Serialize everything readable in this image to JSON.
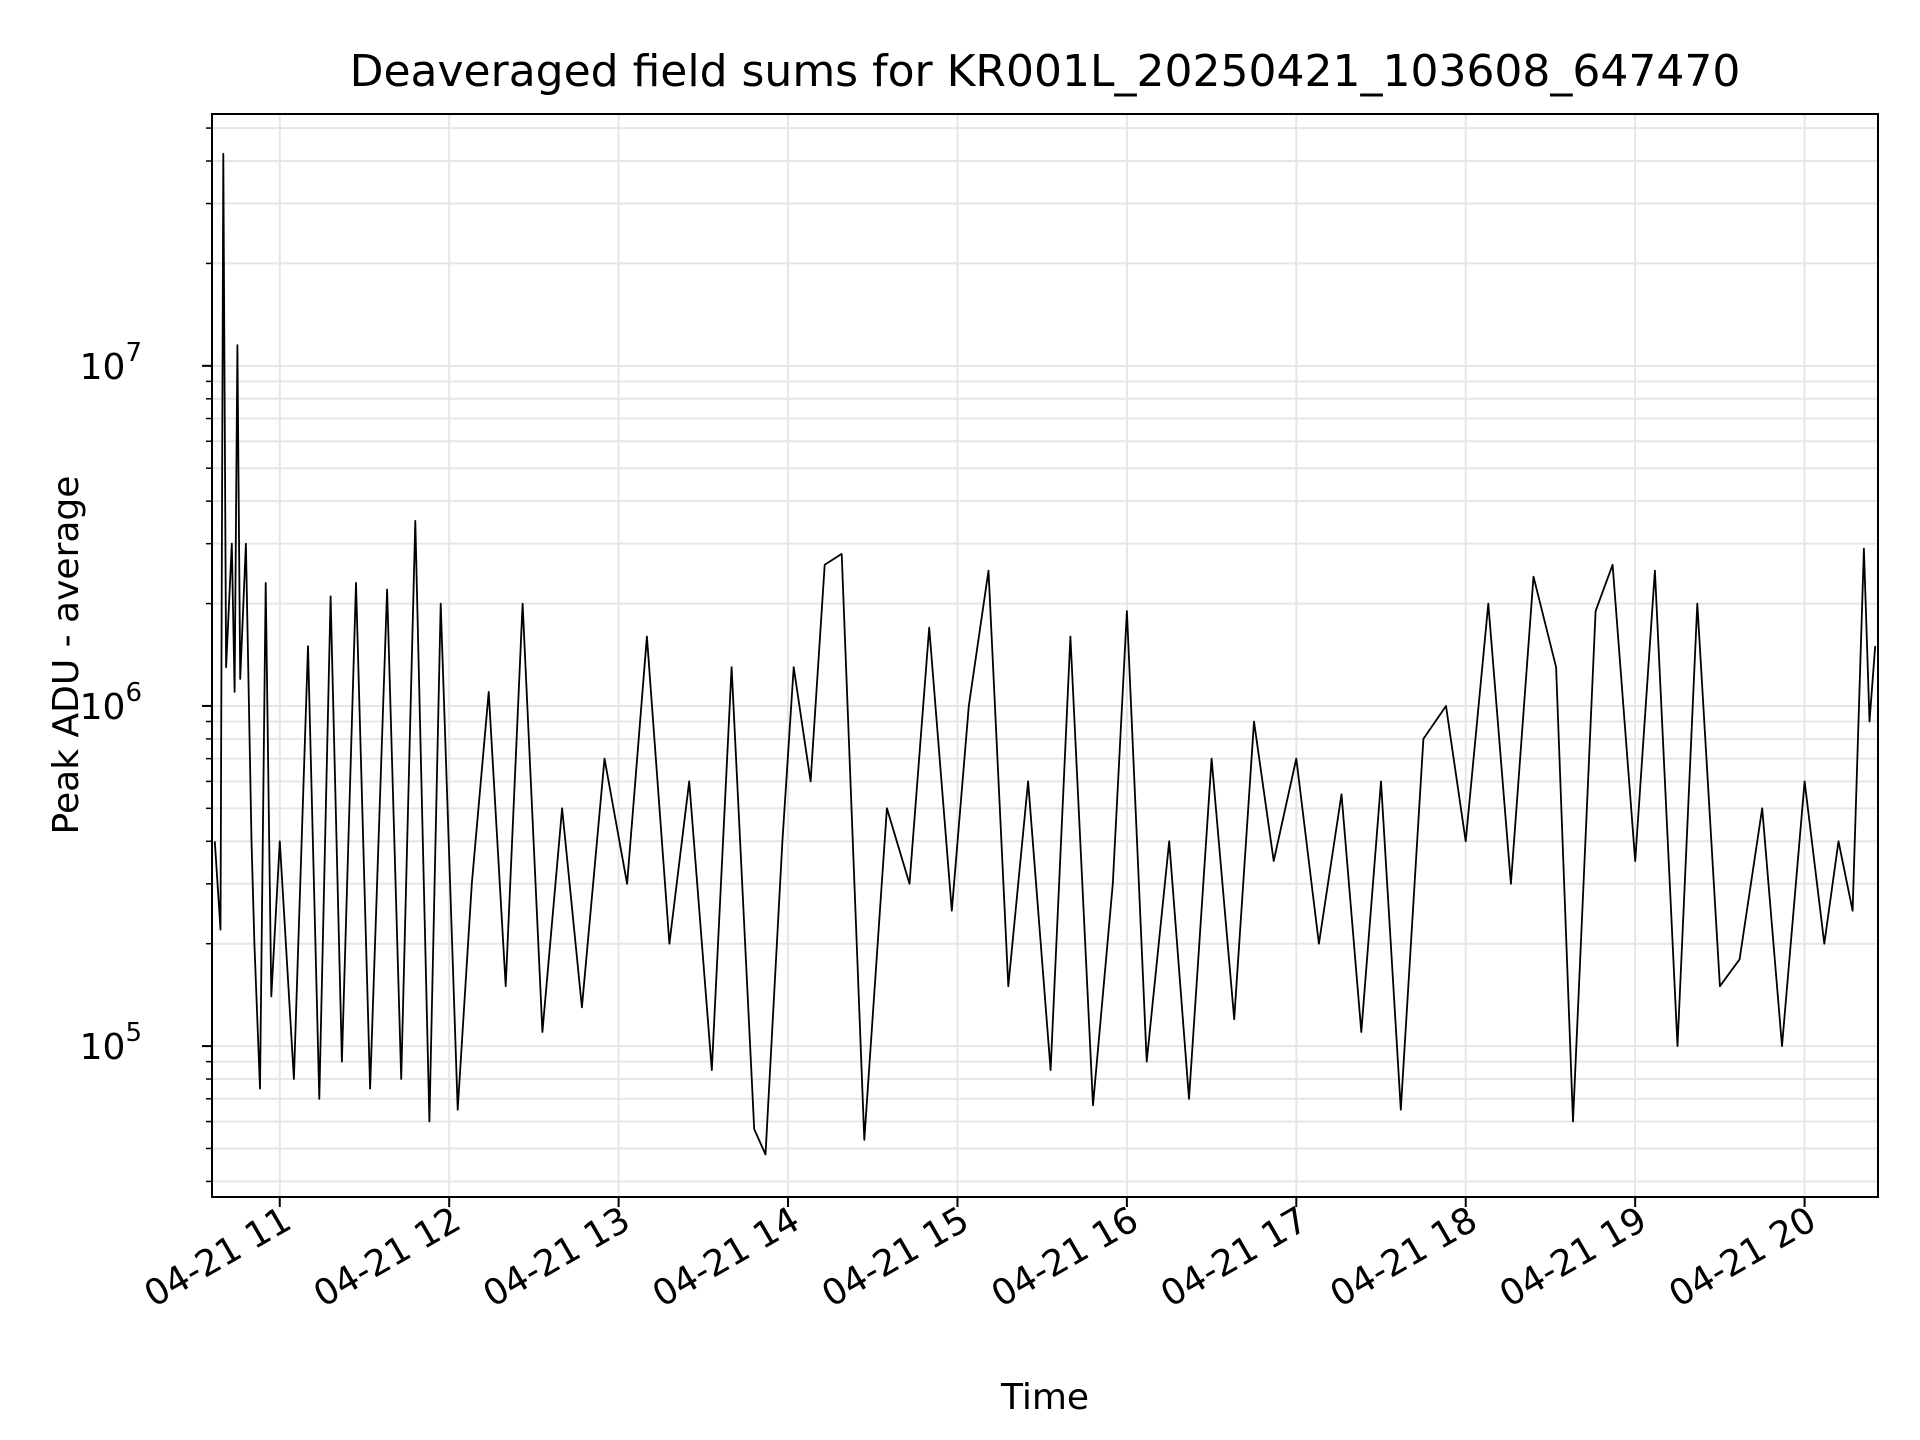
{
  "chart_data": {
    "type": "line",
    "title": "Deaveraged field sums for KR001L_20250421_103608_647470",
    "xlabel": "Time",
    "ylabel": "Peak ADU - average",
    "yscale": "log",
    "ylim": [
      36000,
      55000000
    ],
    "xlim": [
      "2025-04-21 10:36",
      "2025-04-21 20:26"
    ],
    "grid": true,
    "line_color": "#000000",
    "grid_color": "#e6e6e6",
    "x_ticks": [
      {
        "label": "04-21 11",
        "time": "2025-04-21 11:00"
      },
      {
        "label": "04-21 12",
        "time": "2025-04-21 12:00"
      },
      {
        "label": "04-21 13",
        "time": "2025-04-21 13:00"
      },
      {
        "label": "04-21 14",
        "time": "2025-04-21 14:00"
      },
      {
        "label": "04-21 15",
        "time": "2025-04-21 15:00"
      },
      {
        "label": "04-21 16",
        "time": "2025-04-21 16:00"
      },
      {
        "label": "04-21 17",
        "time": "2025-04-21 17:00"
      },
      {
        "label": "04-21 18",
        "time": "2025-04-21 18:00"
      },
      {
        "label": "04-21 19",
        "time": "2025-04-21 19:00"
      },
      {
        "label": "04-21 20",
        "time": "2025-04-21 20:00"
      }
    ],
    "y_ticks": [
      {
        "base": "10",
        "exp": "5",
        "value": 100000
      },
      {
        "base": "10",
        "exp": "6",
        "value": 1000000
      },
      {
        "base": "10",
        "exp": "7",
        "value": 10000000
      }
    ],
    "series": [
      {
        "points": [
          [
            "2025-04-21 10:37",
            400000
          ],
          [
            "2025-04-21 10:39",
            220000
          ],
          [
            "2025-04-21 10:40",
            42000000
          ],
          [
            "2025-04-21 10:41",
            1300000
          ],
          [
            "2025-04-21 10:43",
            3000000
          ],
          [
            "2025-04-21 10:44",
            1100000
          ],
          [
            "2025-04-21 10:45",
            11500000
          ],
          [
            "2025-04-21 10:46",
            1200000
          ],
          [
            "2025-04-21 10:48",
            3000000
          ],
          [
            "2025-04-21 10:50",
            400000
          ],
          [
            "2025-04-21 10:51",
            200000
          ],
          [
            "2025-04-21 10:53",
            75000
          ],
          [
            "2025-04-21 10:55",
            2300000
          ],
          [
            "2025-04-21 10:57",
            140000
          ],
          [
            "2025-04-21 11:00",
            400000
          ],
          [
            "2025-04-21 11:05",
            80000
          ],
          [
            "2025-04-21 11:10",
            1500000
          ],
          [
            "2025-04-21 11:14",
            70000
          ],
          [
            "2025-04-21 11:18",
            2100000
          ],
          [
            "2025-04-21 11:22",
            90000
          ],
          [
            "2025-04-21 11:27",
            2300000
          ],
          [
            "2025-04-21 11:32",
            75000
          ],
          [
            "2025-04-21 11:38",
            2200000
          ],
          [
            "2025-04-21 11:43",
            80000
          ],
          [
            "2025-04-21 11:48",
            3500000
          ],
          [
            "2025-04-21 11:53",
            60000
          ],
          [
            "2025-04-21 11:57",
            2000000
          ],
          [
            "2025-04-21 12:03",
            65000
          ],
          [
            "2025-04-21 12:08",
            300000
          ],
          [
            "2025-04-21 12:14",
            1100000
          ],
          [
            "2025-04-21 12:20",
            150000
          ],
          [
            "2025-04-21 12:26",
            2000000
          ],
          [
            "2025-04-21 12:33",
            110000
          ],
          [
            "2025-04-21 12:40",
            500000
          ],
          [
            "2025-04-21 12:47",
            130000
          ],
          [
            "2025-04-21 12:55",
            700000
          ],
          [
            "2025-04-21 13:03",
            300000
          ],
          [
            "2025-04-21 13:10",
            1600000
          ],
          [
            "2025-04-21 13:18",
            200000
          ],
          [
            "2025-04-21 13:25",
            600000
          ],
          [
            "2025-04-21 13:33",
            85000
          ],
          [
            "2025-04-21 13:40",
            1300000
          ],
          [
            "2025-04-21 13:48",
            57000
          ],
          [
            "2025-04-21 13:52",
            48000
          ],
          [
            "2025-04-21 13:58",
            400000
          ],
          [
            "2025-04-21 14:02",
            1300000
          ],
          [
            "2025-04-21 14:08",
            600000
          ],
          [
            "2025-04-21 14:13",
            2600000
          ],
          [
            "2025-04-21 14:19",
            2800000
          ],
          [
            "2025-04-21 14:27",
            53000
          ],
          [
            "2025-04-21 14:35",
            500000
          ],
          [
            "2025-04-21 14:43",
            300000
          ],
          [
            "2025-04-21 14:50",
            1700000
          ],
          [
            "2025-04-21 14:58",
            250000
          ],
          [
            "2025-04-21 15:04",
            1000000
          ],
          [
            "2025-04-21 15:11",
            2500000
          ],
          [
            "2025-04-21 15:18",
            150000
          ],
          [
            "2025-04-21 15:25",
            600000
          ],
          [
            "2025-04-21 15:33",
            85000
          ],
          [
            "2025-04-21 15:40",
            1600000
          ],
          [
            "2025-04-21 15:48",
            67000
          ],
          [
            "2025-04-21 15:55",
            300000
          ],
          [
            "2025-04-21 16:00",
            1900000
          ],
          [
            "2025-04-21 16:07",
            90000
          ],
          [
            "2025-04-21 16:15",
            400000
          ],
          [
            "2025-04-21 16:22",
            70000
          ],
          [
            "2025-04-21 16:30",
            700000
          ],
          [
            "2025-04-21 16:38",
            120000
          ],
          [
            "2025-04-21 16:45",
            900000
          ],
          [
            "2025-04-21 16:52",
            350000
          ],
          [
            "2025-04-21 17:00",
            700000
          ],
          [
            "2025-04-21 17:08",
            200000
          ],
          [
            "2025-04-21 17:16",
            550000
          ],
          [
            "2025-04-21 17:23",
            110000
          ],
          [
            "2025-04-21 17:30",
            600000
          ],
          [
            "2025-04-21 17:37",
            65000
          ],
          [
            "2025-04-21 17:45",
            800000
          ],
          [
            "2025-04-21 17:53",
            1000000
          ],
          [
            "2025-04-21 18:00",
            400000
          ],
          [
            "2025-04-21 18:08",
            2000000
          ],
          [
            "2025-04-21 18:16",
            300000
          ],
          [
            "2025-04-21 18:24",
            2400000
          ],
          [
            "2025-04-21 18:32",
            1300000
          ],
          [
            "2025-04-21 18:38",
            60000
          ],
          [
            "2025-04-21 18:46",
            1900000
          ],
          [
            "2025-04-21 18:52",
            2600000
          ],
          [
            "2025-04-21 19:00",
            350000
          ],
          [
            "2025-04-21 19:07",
            2500000
          ],
          [
            "2025-04-21 19:15",
            100000
          ],
          [
            "2025-04-21 19:22",
            2000000
          ],
          [
            "2025-04-21 19:30",
            150000
          ],
          [
            "2025-04-21 19:37",
            180000
          ],
          [
            "2025-04-21 19:45",
            500000
          ],
          [
            "2025-04-21 19:52",
            100000
          ],
          [
            "2025-04-21 20:00",
            600000
          ],
          [
            "2025-04-21 20:07",
            200000
          ],
          [
            "2025-04-21 20:12",
            400000
          ],
          [
            "2025-04-21 20:17",
            250000
          ],
          [
            "2025-04-21 20:21",
            2900000
          ],
          [
            "2025-04-21 20:23",
            900000
          ],
          [
            "2025-04-21 20:25",
            1500000
          ]
        ]
      }
    ]
  }
}
